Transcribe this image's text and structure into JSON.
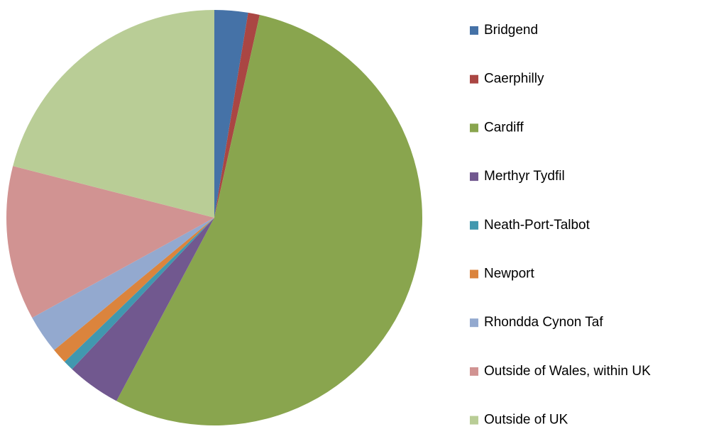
{
  "chart_data": {
    "type": "pie",
    "categories": [
      "Bridgend",
      "Caerphilly",
      "Cardiff",
      "Merthyr Tydfil",
      "Neath-Port-Talbot",
      "Newport",
      "Rhondda Cynon Taf",
      "Outside of Wales, within UK",
      "Outside of UK"
    ],
    "values": [
      2.6,
      0.9,
      54.3,
      4.2,
      0.8,
      1.2,
      3,
      12,
      21
    ],
    "colors": [
      "#4572a7",
      "#aa4643",
      "#89a54e",
      "#71588f",
      "#4198af",
      "#db843d",
      "#93a9cf",
      "#d19392",
      "#b9cd96"
    ],
    "legend": "right"
  }
}
